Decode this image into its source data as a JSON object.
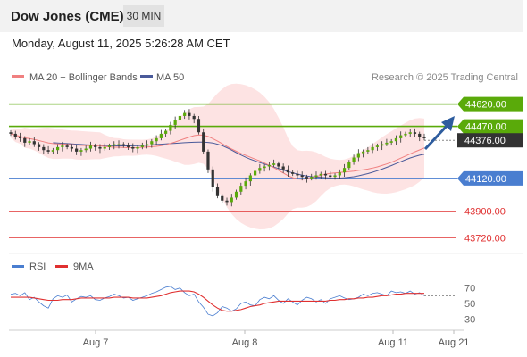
{
  "header": {
    "instrument": "Dow Jones (CME)",
    "timeframe": "30 MIN",
    "datetime": "Monday, August 11, 2025 5:26:28 AM CET"
  },
  "legend": {
    "ma20": "MA 20 + Bollinger Bands",
    "ma50": "MA 50",
    "credit": "Research © 2025 Trading Central",
    "rsi": "RSI",
    "rsi_ma": "9MA"
  },
  "colors": {
    "green": "#5aaa0a",
    "blue": "#4a7ed0",
    "red": "#e03030",
    "ma20": "#f08080",
    "ma50": "#4a5a9a",
    "band": "#fde3e3",
    "candle": "#333333",
    "candle_up": "#5aaa0a",
    "last": "#333333"
  },
  "chart_data": {
    "type": "candlestick",
    "price_ylim": [
      43650,
      44720
    ],
    "levels": [
      {
        "value": 44620,
        "label": "44620.00",
        "style": "green-line"
      },
      {
        "value": 44470,
        "label": "44470.00",
        "style": "green-line"
      },
      {
        "value": 44376,
        "label": "44376.00",
        "style": "last-price"
      },
      {
        "value": 44120,
        "label": "44120.00",
        "style": "blue-line"
      },
      {
        "value": 43900,
        "label": "43900.00",
        "style": "red-line"
      },
      {
        "value": 43720,
        "label": "43720.00",
        "style": "red-line"
      }
    ],
    "x_labels": [
      "Aug 7",
      "Aug 8",
      "Aug 11",
      "Aug 21"
    ],
    "close": [
      44420,
      44400,
      44390,
      44360,
      44370,
      44350,
      44330,
      44310,
      44300,
      44310,
      44330,
      44340,
      44330,
      44320,
      44300,
      44310,
      44320,
      44340,
      44330,
      44320,
      44330,
      44340,
      44350,
      44350,
      44340,
      44330,
      44320,
      44330,
      44340,
      44350,
      44370,
      44390,
      44420,
      44440,
      44480,
      44510,
      44540,
      44560,
      44540,
      44520,
      44430,
      44300,
      44180,
      44060,
      44000,
      43970,
      43960,
      43990,
      44030,
      44070,
      44100,
      44140,
      44170,
      44190,
      44200,
      44210,
      44220,
      44200,
      44180,
      44160,
      44150,
      44140,
      44130,
      44120,
      44130,
      44140,
      44150,
      44140,
      44130,
      44140,
      44160,
      44190,
      44230,
      44260,
      44290,
      44300,
      44310,
      44330,
      44340,
      44350,
      44360,
      44370,
      44390,
      44410,
      44420,
      44430,
      44420,
      44400,
      44390
    ],
    "ma50": [
      44360,
      44358,
      44356,
      44354,
      44352,
      44350,
      44348,
      44346,
      44344,
      44343,
      44342,
      44341,
      44340,
      44339,
      44338,
      44338,
      44338,
      44339,
      44340,
      44341,
      44343,
      44345,
      44348,
      44350,
      44352,
      44354,
      44356,
      44358,
      44360,
      44362,
      44363,
      44364,
      44364,
      44362,
      44358,
      44350,
      44340,
      44326,
      44310,
      44293,
      44277,
      44262,
      44249,
      44237,
      44226,
      44216,
      44206,
      44196,
      44186,
      44176,
      44166,
      44157,
      44149,
      44142,
      44136,
      44131,
      44128,
      44126,
      44124,
      44122,
      44121,
      44122,
      44124,
      44127,
      44131,
      44137,
      44144,
      44152,
      44161,
      44171,
      44182,
      44194,
      44206,
      44219,
      44232,
      44245,
      44257,
      44267,
      44276,
      44282
    ],
    "rsi": {
      "ylim": [
        20,
        80
      ],
      "ticks": [
        70,
        50,
        30
      ],
      "series": [
        {
          "name": "RSI",
          "values": [
            62,
            63,
            60,
            64,
            55,
            58,
            52,
            47,
            44,
            56,
            60,
            58,
            61,
            52,
            56,
            59,
            58,
            60,
            55,
            54,
            57,
            59,
            62,
            60,
            57,
            58,
            54,
            56,
            58,
            60,
            63,
            65,
            68,
            71,
            72,
            68,
            70,
            64,
            60,
            62,
            52,
            45,
            36,
            34,
            38,
            46,
            44,
            40,
            43,
            50,
            52,
            48,
            47,
            55,
            58,
            56,
            60,
            54,
            50,
            56,
            52,
            48,
            54,
            58,
            56,
            52,
            55,
            50,
            56,
            58,
            60,
            57,
            55,
            56,
            58,
            62,
            60,
            63,
            64,
            62,
            60,
            66,
            64,
            65,
            63,
            66,
            62,
            64,
            60
          ]
        },
        {
          "name": "9MA",
          "values": [
            58,
            58,
            58,
            58,
            58,
            57,
            56,
            55,
            54,
            54,
            54,
            55,
            55,
            55,
            56,
            57,
            57,
            57,
            57,
            57,
            57,
            57,
            58,
            58,
            58,
            58,
            57,
            57,
            57,
            57,
            58,
            59,
            60,
            62,
            64,
            65,
            66,
            66,
            66,
            65,
            62,
            58,
            53,
            48,
            44,
            41,
            40,
            40,
            41,
            42,
            44,
            46,
            47,
            48,
            50,
            51,
            52,
            53,
            53,
            53,
            53,
            53,
            53,
            53,
            53,
            53,
            53,
            53,
            54,
            54,
            55,
            55,
            56,
            56,
            57,
            57,
            58,
            58,
            59,
            60,
            60,
            61,
            62,
            62,
            63,
            63,
            63,
            63,
            63
          ]
        }
      ]
    }
  }
}
